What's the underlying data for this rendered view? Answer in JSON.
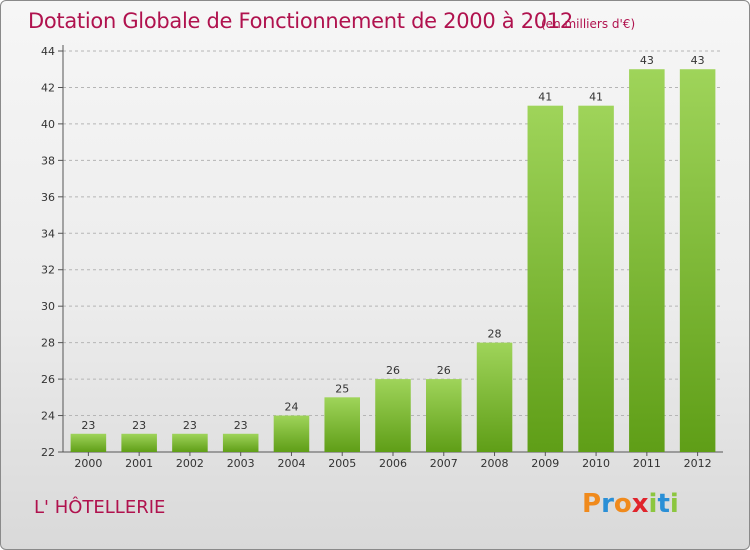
{
  "header": {
    "title": "Dotation Globale de Fonctionnement de 2000 à 2012",
    "unit": "(en milliers d'€)"
  },
  "footer": {
    "commune": "L' HÔTELLERIE",
    "brand": "Proxiti",
    "brand_letters": [
      {
        "ch": "P",
        "color": "#f08a1c"
      },
      {
        "ch": "r",
        "color": "#2a8fd6"
      },
      {
        "ch": "o",
        "color": "#f08a1c"
      },
      {
        "ch": "x",
        "color": "#e0242c"
      },
      {
        "ch": "i",
        "color": "#8cc63f"
      },
      {
        "ch": "t",
        "color": "#2a8fd6"
      },
      {
        "ch": "i",
        "color": "#8cc63f"
      }
    ]
  },
  "colors": {
    "title": "#b0124e",
    "bar_light": "#9fd45a",
    "bar_dark": "#5f9e17",
    "grid": "#b5b5b5"
  },
  "chart_data": {
    "type": "bar",
    "title": "Dotation Globale de Fonctionnement de 2000 à 2012",
    "subtitle": "(en milliers d'€)",
    "categories": [
      "2000",
      "2001",
      "2002",
      "2003",
      "2004",
      "2005",
      "2006",
      "2007",
      "2008",
      "2009",
      "2010",
      "2011",
      "2012"
    ],
    "values": [
      23,
      23,
      23,
      23,
      24,
      25,
      26,
      26,
      28,
      41,
      41,
      43,
      43
    ],
    "ylim": [
      22,
      44
    ],
    "yticks": [
      22,
      24,
      26,
      28,
      30,
      32,
      34,
      36,
      38,
      40,
      42,
      44
    ],
    "grid": true,
    "data_labels": true
  }
}
